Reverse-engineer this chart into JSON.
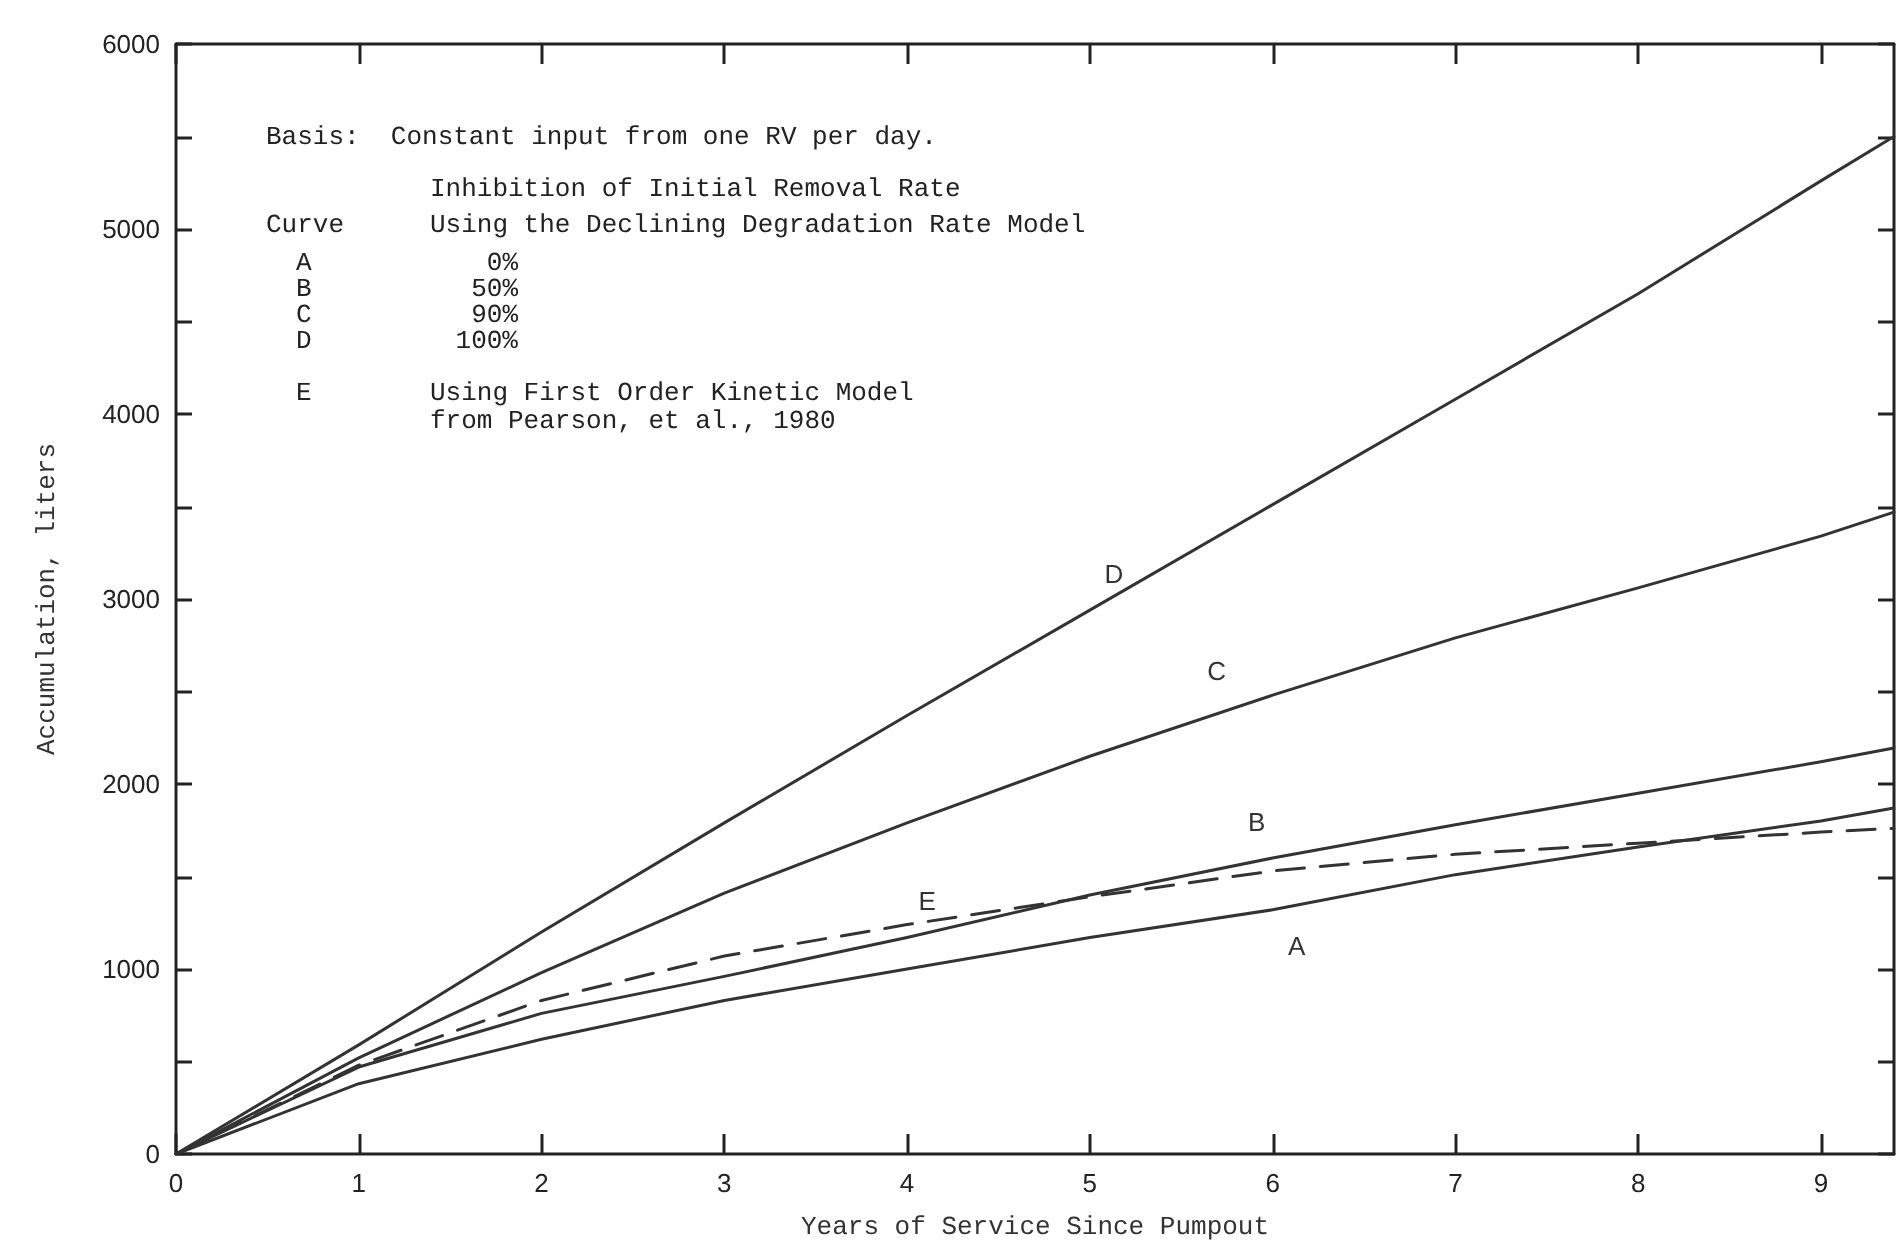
{
  "chart_data": {
    "type": "line",
    "xlabel": "Years of Service Since Pumpout",
    "ylabel": "Accumulation, liters",
    "x": [
      0,
      1,
      2,
      3,
      4,
      5,
      6,
      7,
      8,
      9,
      9.4
    ],
    "series": [
      {
        "name": "A",
        "color": "#333333",
        "values": [
          0,
          380,
          620,
          830,
          1000,
          1170,
          1320,
          1510,
          1660,
          1800,
          1870
        ]
      },
      {
        "name": "B",
        "color": "#333333",
        "values": [
          0,
          470,
          760,
          960,
          1170,
          1400,
          1600,
          1780,
          1950,
          2120,
          2195
        ]
      },
      {
        "name": "C",
        "color": "#333333",
        "values": [
          0,
          520,
          980,
          1410,
          1790,
          2150,
          2480,
          2790,
          3060,
          3340,
          3470
        ]
      },
      {
        "name": "D",
        "color": "#333333",
        "values": [
          0,
          590,
          1200,
          1790,
          2370,
          2940,
          3510,
          4080,
          4650,
          5260,
          5500
        ]
      },
      {
        "name": "E",
        "color": "#333333",
        "line_style": "dashed",
        "values": [
          0,
          480,
          830,
          1070,
          1240,
          1390,
          1530,
          1620,
          1680,
          1740,
          1760
        ]
      }
    ],
    "xlim": [
      0,
      9.4
    ],
    "xticks": [
      0,
      1,
      2,
      3,
      4,
      5,
      6,
      7,
      8,
      9
    ],
    "ylim": [
      0,
      6000
    ],
    "yticks": [
      0,
      {
        "value": 500,
        "label": null
      },
      1000,
      {
        "value": 1500,
        "label": null
      },
      2000,
      {
        "value": 2500,
        "label": null
      },
      3000,
      {
        "value": 3500,
        "label": null
      },
      4000,
      {
        "value": 4500,
        "label": null
      },
      5000,
      {
        "value": 5500,
        "label": null
      },
      6000
    ],
    "annotations": [
      "Basis:  Constant input from one RV per day.",
      "Inhibition of Initial Removal Rate",
      "Curve",
      "Using the Declining Degradation Rate Model",
      "A",
      "0%",
      "B",
      "50%",
      "C",
      "90%",
      "D",
      "100%",
      "E",
      "Using First Order Kinetic Model",
      "from Pearson, et al., 1980"
    ],
    "grid": false,
    "legend": false,
    "line_style": "solid"
  }
}
